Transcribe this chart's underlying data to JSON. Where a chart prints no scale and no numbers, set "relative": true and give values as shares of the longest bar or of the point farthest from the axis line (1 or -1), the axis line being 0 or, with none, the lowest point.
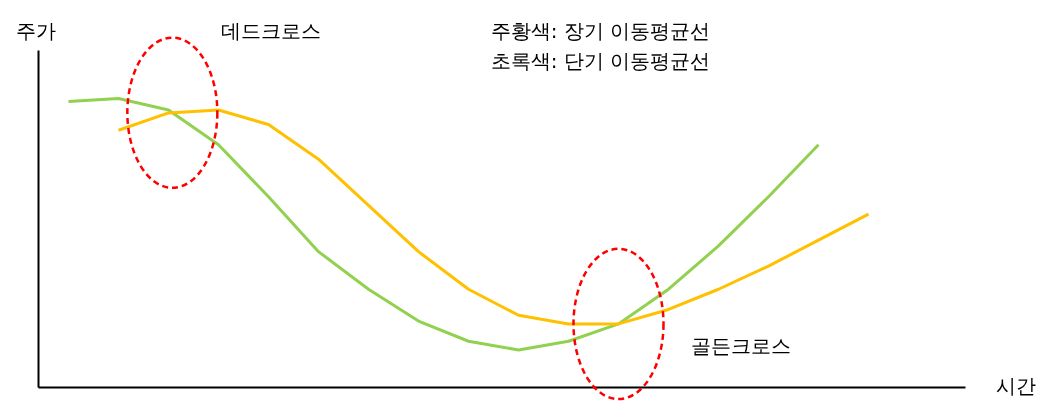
{
  "chart_data": {
    "type": "line",
    "relative": true,
    "ylabel": "주가",
    "categories": [
      null,
      null,
      null,
      null,
      null,
      null,
      null,
      null,
      null,
      null,
      null,
      null,
      null,
      null,
      null,
      null,
      null
    ],
    "series": [
      {
        "color": "#92d050",
        "values": [
          0.99,
          1,
          0.96,
          0.84,
          0.66,
          0.47,
          0.34,
          0.23,
          0.16,
          0.13,
          0.16,
          0.22,
          0.34,
          0.49,
          0.66,
          0.84,
          null
        ]
      },
      {
        "color": "#ffc000",
        "values": [
          null,
          0.89,
          0.95,
          0.96,
          0.91,
          0.79,
          0.63,
          0.47,
          0.34,
          0.25,
          0.22,
          0.22,
          0.27,
          0.34,
          0.42,
          0.51,
          0.6
        ]
      }
    ],
    "annotations": [
      "데드크로스",
      "주황색: 장기 이동평균선",
      "초록색: 단기 이동평균선",
      "골든크로스",
      "시간"
    ],
    "grid": false
  }
}
